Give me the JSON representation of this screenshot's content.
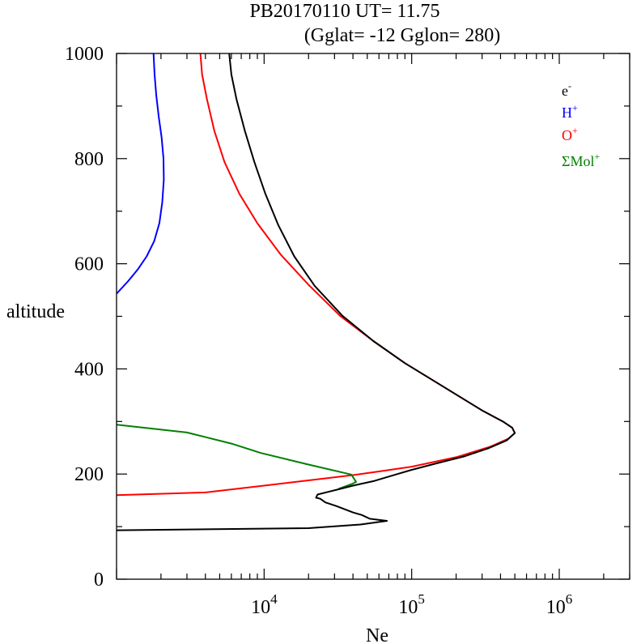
{
  "chart_data": {
    "type": "line",
    "title": "PB20170110   UT=  11.75",
    "subtitle": "(Gglat= -12   Gglon=  280)",
    "xlabel": "Ne",
    "ylabel": "altitude",
    "x_scale": "log",
    "xlim": [
      1000,
      3000000
    ],
    "ylim": [
      0,
      1000
    ],
    "x_tick_values": [
      10000,
      100000,
      1000000
    ],
    "x_tick_labels": [
      {
        "base": "10",
        "exp": "4"
      },
      {
        "base": "10",
        "exp": "5"
      },
      {
        "base": "10",
        "exp": "6"
      }
    ],
    "y_ticks": [
      0,
      200,
      400,
      600,
      800,
      1000
    ],
    "grid": false,
    "legend_position": "top-right",
    "series": [
      {
        "name": "e-",
        "label_base": "e",
        "label_sup": "-",
        "color": "#000000",
        "points": [
          [
            1000,
            93
          ],
          [
            20000,
            97
          ],
          [
            45000,
            104
          ],
          [
            68000,
            111
          ],
          [
            52000,
            115
          ],
          [
            46000,
            122
          ],
          [
            40000,
            127
          ],
          [
            31000,
            139
          ],
          [
            26000,
            146
          ],
          [
            24000,
            153
          ],
          [
            22500,
            155
          ],
          [
            23000,
            161
          ],
          [
            27000,
            166
          ],
          [
            32000,
            171
          ],
          [
            40000,
            178
          ],
          [
            56000,
            187
          ],
          [
            80000,
            200
          ],
          [
            100000,
            208
          ],
          [
            150000,
            221
          ],
          [
            230000,
            234
          ],
          [
            330000,
            249
          ],
          [
            440000,
            264
          ],
          [
            500000,
            278
          ],
          [
            480000,
            288
          ],
          [
            420000,
            299
          ],
          [
            300000,
            321
          ],
          [
            160000,
            368
          ],
          [
            90000,
            411
          ],
          [
            55000,
            453
          ],
          [
            34000,
            501
          ],
          [
            22000,
            558
          ],
          [
            16000,
            614
          ],
          [
            12500,
            673
          ],
          [
            10200,
            733
          ],
          [
            8600,
            793
          ],
          [
            7400,
            853
          ],
          [
            6500,
            913
          ],
          [
            6000,
            960
          ],
          [
            5800,
            1000
          ]
        ]
      },
      {
        "name": "H+",
        "label_base": "H",
        "label_sup": "+",
        "color": "#0000ff",
        "points": [
          [
            1000,
            543
          ],
          [
            1200,
            567
          ],
          [
            1400,
            590
          ],
          [
            1600,
            614
          ],
          [
            1800,
            643
          ],
          [
            1950,
            677
          ],
          [
            2040,
            717
          ],
          [
            2090,
            760
          ],
          [
            2080,
            800
          ],
          [
            2020,
            840
          ],
          [
            1930,
            880
          ],
          [
            1860,
            920
          ],
          [
            1810,
            960
          ],
          [
            1780,
            1000
          ]
        ]
      },
      {
        "name": "O+",
        "label_base": "O",
        "label_sup": "+",
        "color": "#ff0000",
        "points": [
          [
            1000,
            160
          ],
          [
            4000,
            165
          ],
          [
            10000,
            178
          ],
          [
            20000,
            188
          ],
          [
            40000,
            198
          ],
          [
            60000,
            205
          ],
          [
            100000,
            214
          ],
          [
            200000,
            232
          ],
          [
            340000,
            252
          ],
          [
            450000,
            267
          ],
          [
            500000,
            278
          ],
          [
            480000,
            288
          ],
          [
            420000,
            299
          ],
          [
            300000,
            321
          ],
          [
            160000,
            368
          ],
          [
            90000,
            411
          ],
          [
            55000,
            453
          ],
          [
            33000,
            500
          ],
          [
            20000,
            560
          ],
          [
            13000,
            617
          ],
          [
            9000,
            677
          ],
          [
            6800,
            733
          ],
          [
            5400,
            793
          ],
          [
            4600,
            853
          ],
          [
            4100,
            913
          ],
          [
            3800,
            960
          ],
          [
            3700,
            1000
          ]
        ]
      },
      {
        "name": "ΣMol+",
        "label_base": "ΣMol",
        "label_sup": "+",
        "color": "#008000",
        "points": [
          [
            1000,
            294
          ],
          [
            3000,
            279
          ],
          [
            6000,
            258
          ],
          [
            9500,
            240
          ],
          [
            20000,
            218
          ],
          [
            39000,
            199
          ],
          [
            42000,
            185
          ],
          [
            40000,
            182
          ],
          [
            32000,
            172
          ]
        ]
      }
    ]
  }
}
